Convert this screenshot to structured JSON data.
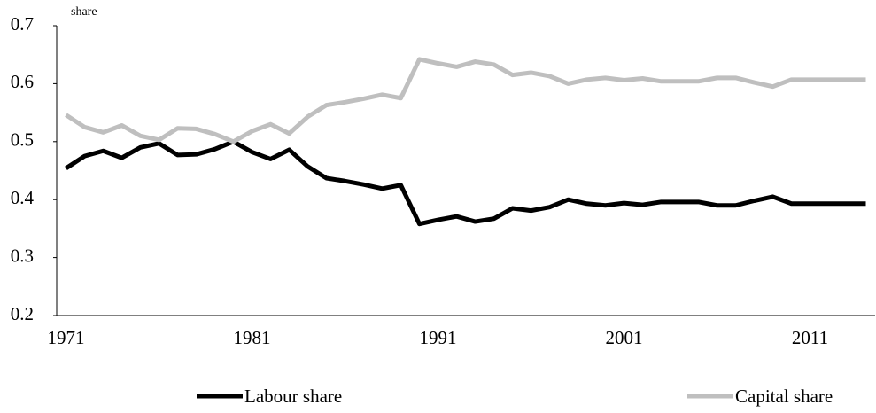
{
  "chart_data": {
    "type": "line",
    "y_label": "share",
    "x": [
      1971,
      1972,
      1973,
      1974,
      1975,
      1976,
      1977,
      1978,
      1979,
      1980,
      1981,
      1982,
      1983,
      1984,
      1985,
      1986,
      1987,
      1988,
      1989,
      1990,
      1991,
      1992,
      1993,
      1994,
      1995,
      1996,
      1997,
      1998,
      1999,
      2000,
      2001,
      2002,
      2003,
      2004,
      2005,
      2006,
      2007,
      2008,
      2009,
      2010,
      2011,
      2012,
      2013,
      2014
    ],
    "series": [
      {
        "name": "Labour share",
        "color": "#000000",
        "values": [
          0.454,
          0.475,
          0.484,
          0.472,
          0.49,
          0.497,
          0.477,
          0.478,
          0.487,
          0.5,
          0.482,
          0.47,
          0.486,
          0.457,
          0.437,
          0.432,
          0.426,
          0.419,
          0.425,
          0.358,
          0.365,
          0.371,
          0.362,
          0.367,
          0.385,
          0.381,
          0.387,
          0.4,
          0.393,
          0.39,
          0.394,
          0.391,
          0.396,
          0.396,
          0.396,
          0.39,
          0.39,
          0.398,
          0.405,
          0.393,
          0.393,
          0.393,
          0.393,
          0.393
        ]
      },
      {
        "name": "Capital share",
        "color": "#bfbfbf",
        "values": [
          0.546,
          0.525,
          0.516,
          0.528,
          0.51,
          0.503,
          0.523,
          0.522,
          0.513,
          0.5,
          0.518,
          0.53,
          0.514,
          0.543,
          0.563,
          0.568,
          0.574,
          0.581,
          0.575,
          0.642,
          0.635,
          0.629,
          0.638,
          0.633,
          0.615,
          0.619,
          0.613,
          0.6,
          0.607,
          0.61,
          0.606,
          0.609,
          0.604,
          0.604,
          0.604,
          0.61,
          0.61,
          0.602,
          0.595,
          0.607,
          0.607,
          0.607,
          0.607,
          0.607
        ]
      }
    ],
    "xlim": [
      1970.5,
      2014.5
    ],
    "xticks": [
      1971,
      1981,
      1991,
      2001,
      2011
    ],
    "ylim": [
      0.2,
      0.7
    ],
    "yticks": [
      0.2,
      0.3,
      0.4,
      0.5,
      0.6,
      0.7
    ],
    "grid": false,
    "legend": "bottom"
  }
}
